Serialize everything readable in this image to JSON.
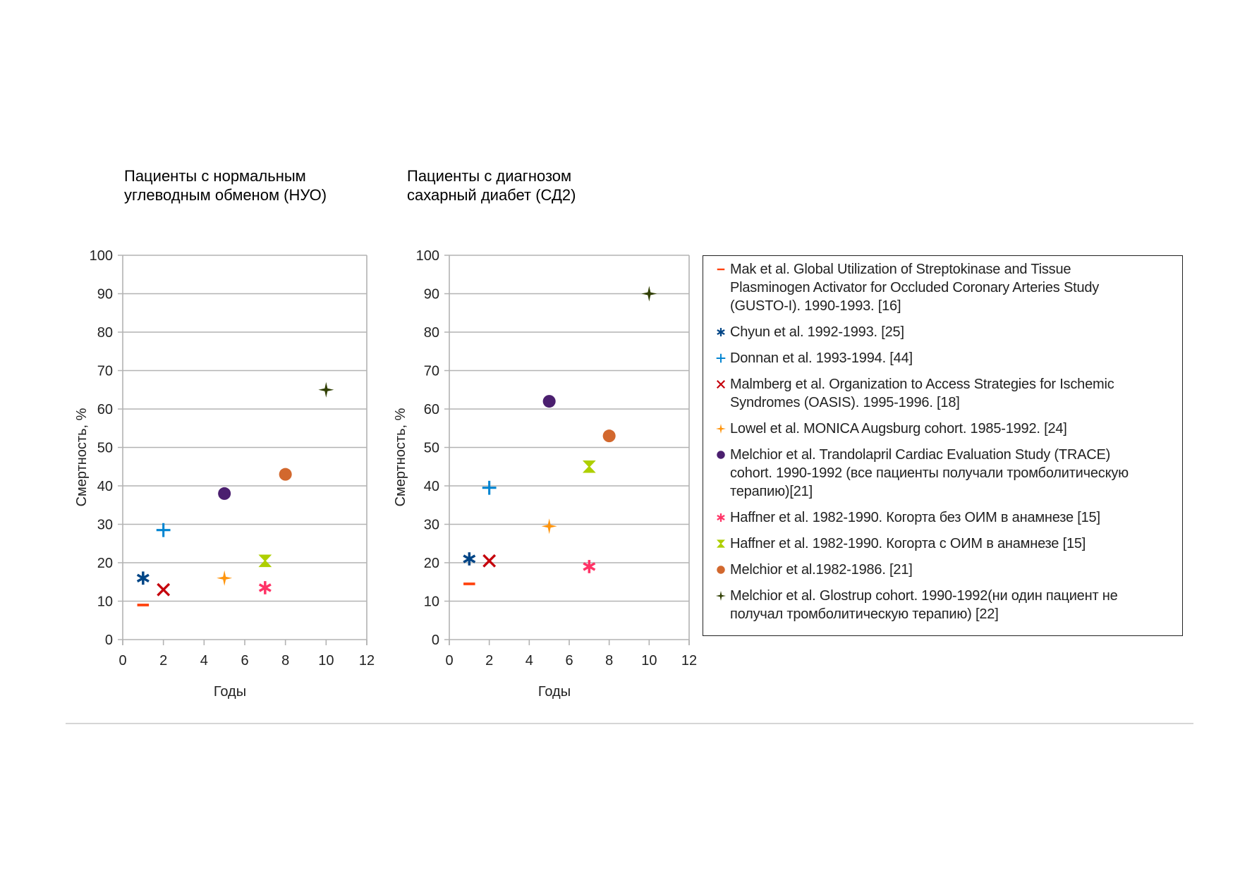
{
  "chart_data": [
    {
      "type": "scatter",
      "title": "Пациенты с нормальным углеводным обменом (НУО)",
      "title_lines": [
        "Пациенты с нормальным",
        "углеводным обменом (НУО)"
      ],
      "xlabel": "Годы",
      "ylabel": "Смертность, %",
      "xlim": [
        0,
        12
      ],
      "ylim": [
        0,
        100
      ],
      "xticks": [
        0,
        2,
        4,
        6,
        8,
        10,
        12
      ],
      "yticks": [
        0,
        10,
        20,
        30,
        40,
        50,
        60,
        70,
        80,
        90,
        100
      ],
      "grid": "horizontal",
      "series": [
        {
          "name": "Mak et al. GUSTO-I",
          "marker": "dash",
          "x": 1,
          "y": 9
        },
        {
          "name": "Chyun et al.",
          "marker": "asterisk",
          "x": 1,
          "y": 16
        },
        {
          "name": "Donnan et al.",
          "marker": "plus",
          "x": 2,
          "y": 28.5
        },
        {
          "name": "Malmberg et al. OASIS",
          "marker": "x",
          "x": 2,
          "y": 13
        },
        {
          "name": "Lowel et al. MONICA",
          "marker": "star4",
          "x": 5,
          "y": 16
        },
        {
          "name": "Melchior et al. TRACE",
          "marker": "circle",
          "x": 5,
          "y": 38
        },
        {
          "name": "Haffner et al. без ОИМ",
          "marker": "asterisk",
          "x": 7,
          "y": 13.5
        },
        {
          "name": "Haffner et al. с ОИМ",
          "marker": "hourglass",
          "x": 7,
          "y": 20.5
        },
        {
          "name": "Melchior et al. 1982-1986",
          "marker": "circle",
          "x": 8,
          "y": 43
        },
        {
          "name": "Melchior et al. Glostrup",
          "marker": "star4",
          "x": 10,
          "y": 65
        }
      ]
    },
    {
      "type": "scatter",
      "title": "Пациенты с диагнозом сахарный диабет (СД2)",
      "title_lines": [
        "Пациенты с диагнозом",
        "сахарный диабет (СД2)"
      ],
      "xlabel": "Годы",
      "ylabel": "Смертность, %",
      "xlim": [
        0,
        12
      ],
      "ylim": [
        0,
        100
      ],
      "xticks": [
        0,
        2,
        4,
        6,
        8,
        10,
        12
      ],
      "yticks": [
        0,
        10,
        20,
        30,
        40,
        50,
        60,
        70,
        80,
        90,
        100
      ],
      "grid": "horizontal",
      "series": [
        {
          "name": "Mak et al. GUSTO-I",
          "marker": "dash",
          "x": 1,
          "y": 14.5
        },
        {
          "name": "Chyun et al.",
          "marker": "asterisk",
          "x": 1,
          "y": 21
        },
        {
          "name": "Donnan et al.",
          "marker": "plus",
          "x": 2,
          "y": 39.5
        },
        {
          "name": "Malmberg et al. OASIS",
          "marker": "x",
          "x": 2,
          "y": 20.5
        },
        {
          "name": "Lowel et al. MONICA",
          "marker": "star4",
          "x": 5,
          "y": 29.5
        },
        {
          "name": "Melchior et al. TRACE",
          "marker": "circle",
          "x": 5,
          "y": 62
        },
        {
          "name": "Haffner et al. без ОИМ",
          "marker": "asterisk",
          "x": 7,
          "y": 19
        },
        {
          "name": "Haffner et al. с ОИМ",
          "marker": "hourglass",
          "x": 7,
          "y": 45
        },
        {
          "name": "Melchior et al. 1982-1986",
          "marker": "circle",
          "x": 8,
          "y": 53
        },
        {
          "name": "Melchior et al. Glostrup",
          "marker": "star4",
          "x": 10,
          "y": 90
        }
      ]
    }
  ],
  "legend": {
    "placement": "right",
    "items": [
      {
        "marker": "dash",
        "color": "#ff420e",
        "lines": [
          "Mak et al. Global Utilization of Streptokinase and Tissue",
          "Plasminogen Activator for Occluded Coronary Arteries Study",
          "(GUSTO-I). 1990-1993. [16]"
        ]
      },
      {
        "marker": "asterisk",
        "color": "#004586",
        "lines": [
          "Chyun et al. 1992-1993. [25]"
        ]
      },
      {
        "marker": "plus",
        "color": "#0084d1",
        "lines": [
          "Donnan et al. 1993-1994. [44]"
        ]
      },
      {
        "marker": "x",
        "color": "#c5000b",
        "lines": [
          "Malmberg et al. Organization to Access Strategies for Ischemic",
          "Syndromes (OASIS). 1995-1996. [18]"
        ]
      },
      {
        "marker": "star4",
        "color": "#ff950e",
        "lines": [
          "Lowel et al. MONICA Augsburg cohort. 1985-1992. [24]"
        ]
      },
      {
        "marker": "circle",
        "color": "#4b1f6f",
        "lines": [
          "Melchior et al. Trandolapril Cardiac Evaluation Study (TRACE)",
          "cohort. 1990-1992 (все пациенты получали тромболитическую",
          "терапию)[21]"
        ]
      },
      {
        "marker": "asterisk",
        "color": "#ff3366",
        "lines": [
          "Haffner et al. 1982-1990. Когорта без ОИМ в анамнезе [15]"
        ]
      },
      {
        "marker": "hourglass",
        "color": "#aecf00",
        "lines": [
          "Haffner et al. 1982-1990. Когорта с ОИМ в анамнезе [15]"
        ]
      },
      {
        "marker": "circle",
        "color": "#d2682e",
        "lines": [
          "Melchior et al.1982-1986. [21]"
        ]
      },
      {
        "marker": "star4",
        "color": "#314004",
        "lines": [
          "Melchior et al. Glostrup cohort. 1990-1992(ни один пациент не",
          "получал тромболитическую терапию) [22]"
        ]
      }
    ]
  }
}
